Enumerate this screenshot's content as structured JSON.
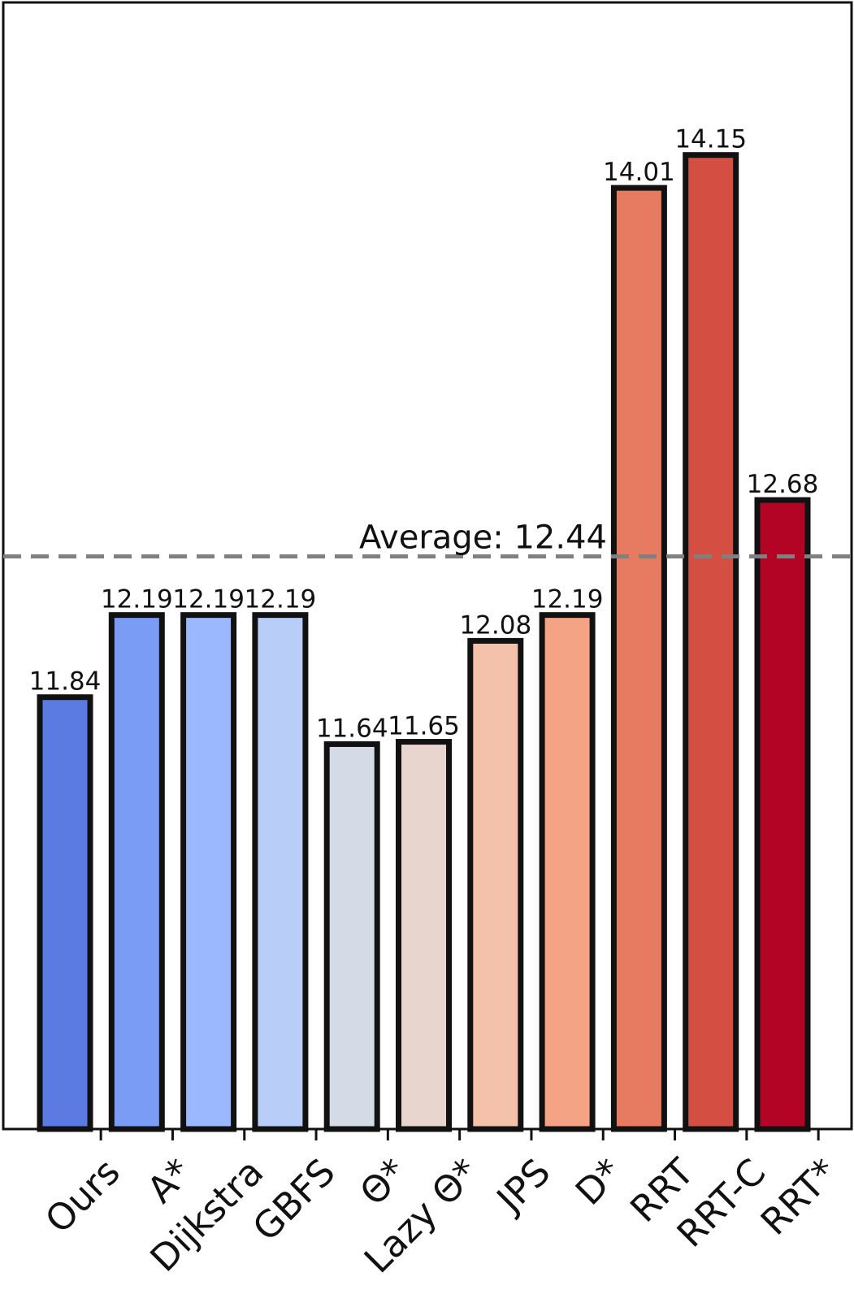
{
  "chart_data": {
    "type": "bar",
    "categories": [
      "Ours",
      "A*",
      "Dijkstra",
      "GBFS",
      "Θ*",
      "Lazy Θ*",
      "JPS",
      "D*",
      "RRT",
      "RRT-C",
      "RRT*"
    ],
    "values": [
      11.84,
      12.19,
      12.19,
      12.19,
      11.64,
      11.65,
      12.08,
      12.19,
      14.01,
      14.15,
      12.68
    ],
    "value_labels": [
      "11.84",
      "12.19",
      "12.19",
      "12.19",
      "11.64",
      "11.65",
      "12.08",
      "12.19",
      "14.01",
      "14.15",
      "12.68"
    ],
    "colors": [
      "#5b7be3",
      "#7b9cf4",
      "#9bb8fe",
      "#b8cdf8",
      "#d4dbe6",
      "#e8d5cd",
      "#f4c2aa",
      "#f4a484",
      "#e77b62",
      "#d44e41",
      "#b40426"
    ],
    "edge_color": "#111111",
    "average": {
      "value": 12.44,
      "label": "Average: 12.44",
      "color": "#808080",
      "style": "dashed"
    },
    "title": "",
    "xlabel": "",
    "ylabel": "",
    "ylim": [
      10.0,
      14.8
    ],
    "grid": false,
    "legend": "none",
    "y_ticks_visible": false
  }
}
